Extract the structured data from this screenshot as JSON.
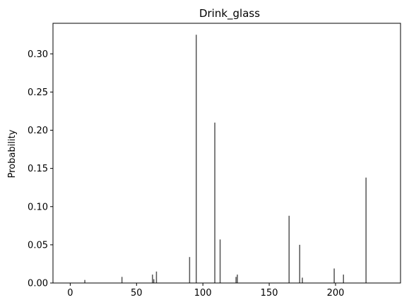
{
  "chart_data": {
    "type": "bar",
    "title": "Drink_glass",
    "xlabel": "",
    "ylabel": "Probability",
    "xlim": [
      -13,
      249
    ],
    "ylim": [
      0,
      0.34
    ],
    "xticks": [
      0,
      50,
      100,
      150,
      200
    ],
    "yticks": [
      0.0,
      0.05,
      0.1,
      0.15,
      0.2,
      0.25,
      0.3
    ],
    "ytick_labels": [
      "0.00",
      "0.05",
      "0.10",
      "0.15",
      "0.20",
      "0.25",
      "0.30"
    ],
    "grid": false,
    "bar_color": "#555555",
    "x": [
      11,
      39,
      62,
      63,
      65,
      90,
      95,
      109,
      113,
      125,
      126,
      165,
      173,
      175,
      199,
      206,
      223
    ],
    "values": [
      0.004,
      0.008,
      0.011,
      0.005,
      0.015,
      0.034,
      0.325,
      0.21,
      0.057,
      0.008,
      0.011,
      0.088,
      0.05,
      0.007,
      0.019,
      0.011,
      0.138
    ]
  }
}
